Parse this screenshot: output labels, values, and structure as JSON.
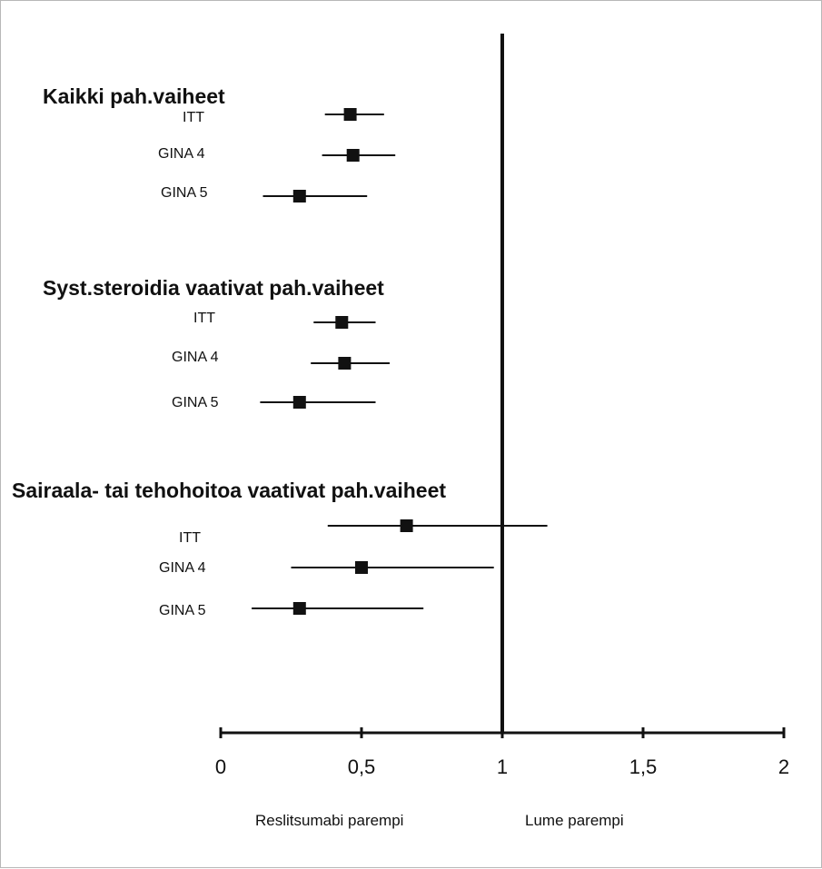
{
  "chart_data": {
    "type": "forest",
    "xlim": [
      0,
      2
    ],
    "reference_line": 1,
    "x_ticks": [
      "0",
      "0,5",
      "1",
      "1,5",
      "2"
    ],
    "x_tick_values": [
      0,
      0.5,
      1,
      1.5,
      2
    ],
    "direction_labels": {
      "left": "Reslitsumabi parempi",
      "right": "Lume parempi"
    },
    "groups": [
      {
        "title": "Kaikki pah.vaiheet",
        "rows": [
          {
            "label": "ITT",
            "estimate": 0.46,
            "ci": [
              0.37,
              0.58
            ]
          },
          {
            "label": "GINA 4",
            "estimate": 0.47,
            "ci": [
              0.36,
              0.62
            ]
          },
          {
            "label": "GINA 5",
            "estimate": 0.28,
            "ci": [
              0.15,
              0.52
            ]
          }
        ]
      },
      {
        "title": "Syst.steroidia vaativat pah.vaiheet",
        "rows": [
          {
            "label": "ITT",
            "estimate": 0.43,
            "ci": [
              0.33,
              0.55
            ]
          },
          {
            "label": "GINA 4",
            "estimate": 0.44,
            "ci": [
              0.32,
              0.6
            ]
          },
          {
            "label": "GINA 5",
            "estimate": 0.28,
            "ci": [
              0.14,
              0.55
            ]
          }
        ]
      },
      {
        "title": "Sairaala- tai tehohoitoa vaativat pah.vaiheet",
        "rows": [
          {
            "label": "ITT",
            "estimate": 0.66,
            "ci": [
              0.38,
              1.16
            ]
          },
          {
            "label": "GINA 4",
            "estimate": 0.5,
            "ci": [
              0.25,
              0.97
            ]
          },
          {
            "label": "GINA 5",
            "estimate": 0.28,
            "ci": [
              0.11,
              0.72
            ]
          }
        ]
      }
    ]
  }
}
